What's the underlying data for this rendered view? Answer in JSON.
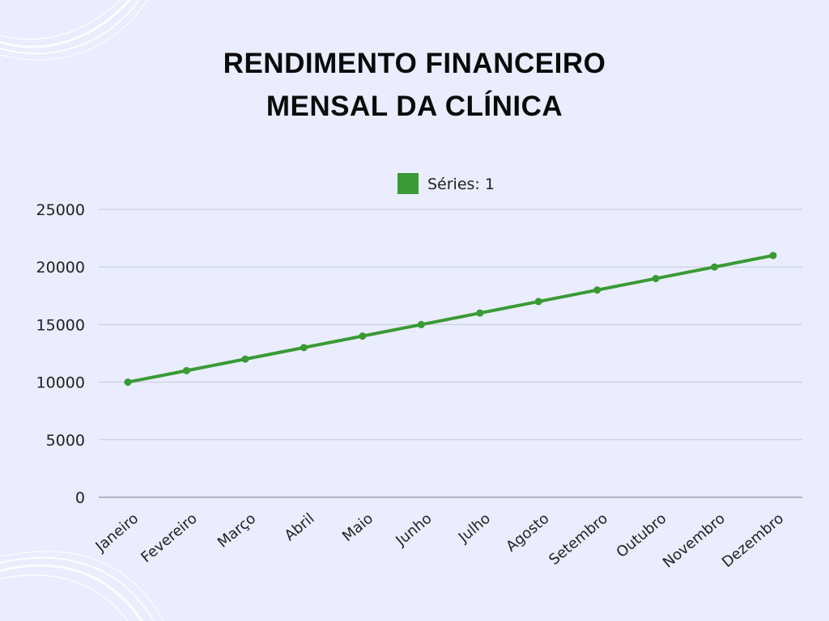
{
  "chart_data": {
    "type": "line",
    "title": [
      "RENDIMENTO FINANCEIRO",
      "MENSAL DA CLÍNICA"
    ],
    "categories": [
      "Janeiro",
      "Fevereiro",
      "Março",
      "Abril",
      "Maio",
      "Junho",
      "Julho",
      "Agosto",
      "Setembro",
      "Outubro",
      "Novembro",
      "Dezembro"
    ],
    "series": [
      {
        "name": "Séries: 1",
        "values": [
          10000,
          11000,
          12000,
          13000,
          14000,
          15000,
          16000,
          17000,
          18000,
          19000,
          20000,
          21000
        ]
      }
    ],
    "yticks": [
      "0",
      "5000",
      "10000",
      "15000",
      "20000",
      "25000"
    ],
    "ylim": [
      0,
      25000
    ],
    "grid": true,
    "legend_position": "top-center",
    "colors": {
      "series": "#3a9a35",
      "grid": "#c4c9dd",
      "axis": "#8f94a8",
      "background": "#e9edfd"
    }
  }
}
